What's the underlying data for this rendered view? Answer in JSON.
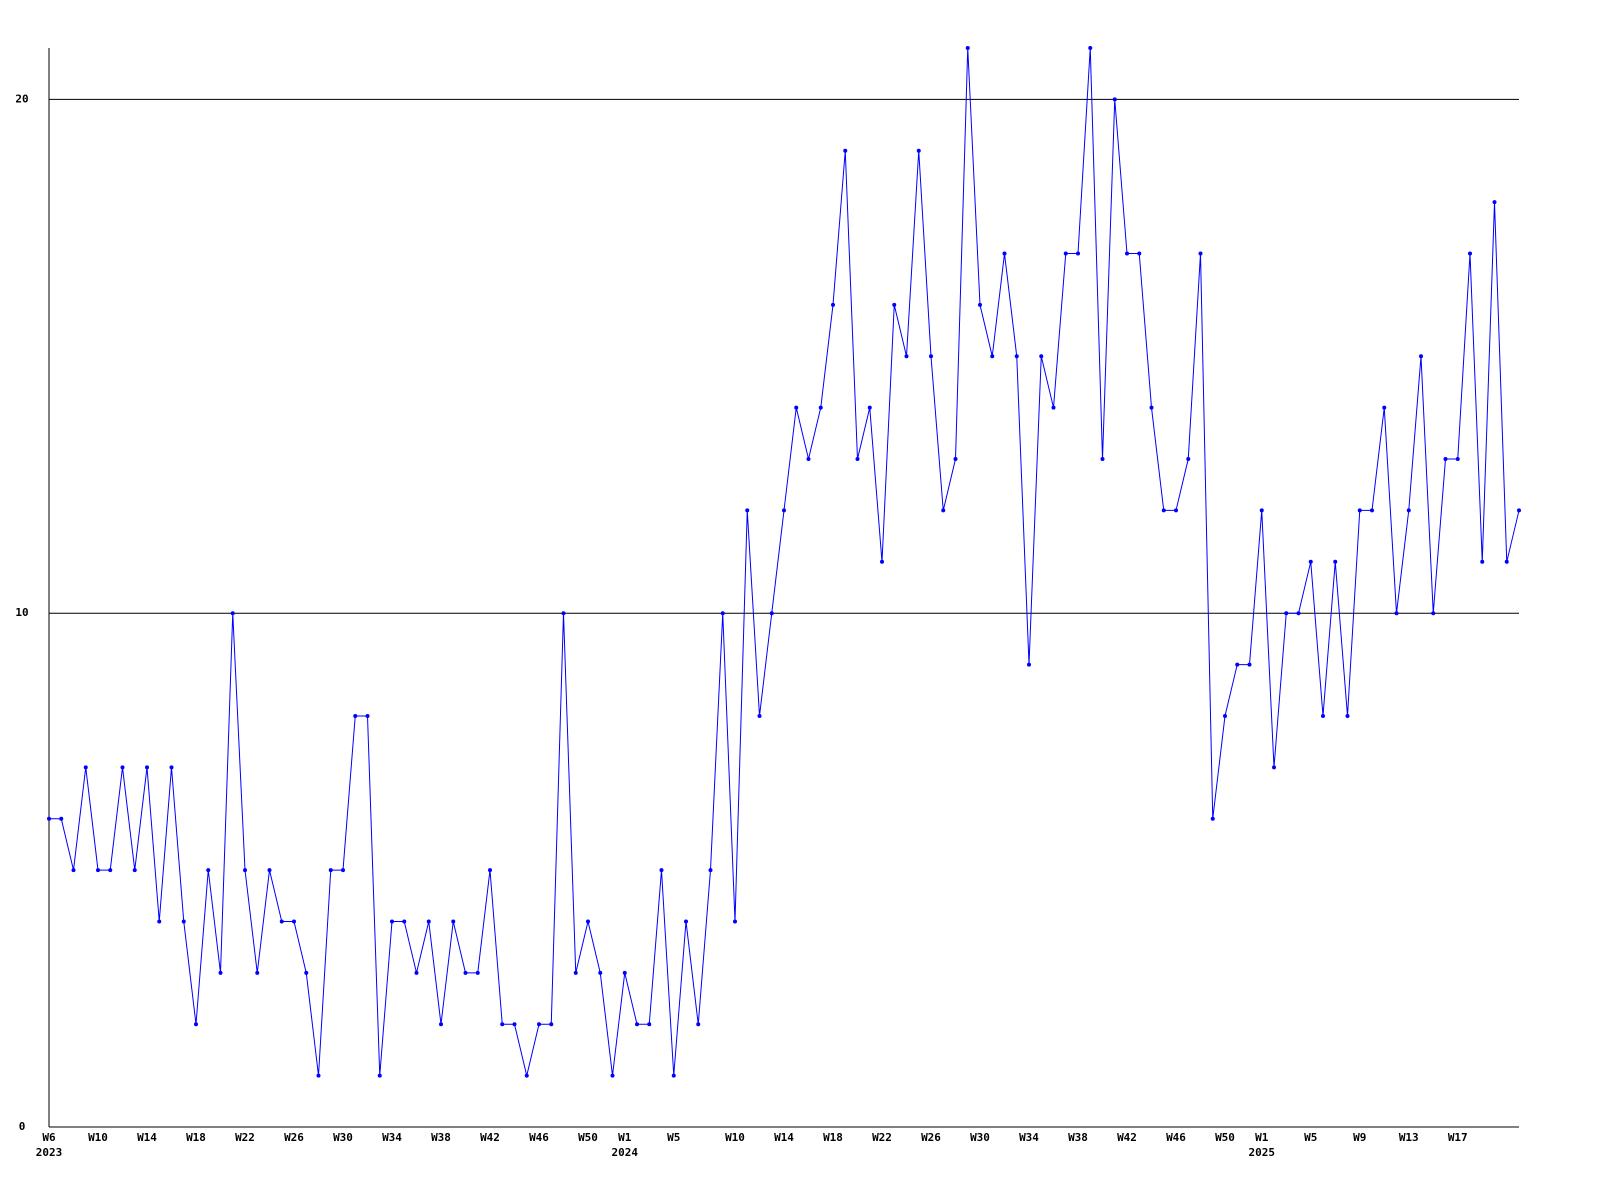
{
  "chart_data": {
    "type": "line",
    "categories": [
      "W6",
      null,
      null,
      null,
      "W10",
      null,
      null,
      null,
      "W14",
      null,
      null,
      null,
      "W18",
      null,
      null,
      null,
      "W22",
      null,
      null,
      null,
      "W26",
      null,
      null,
      null,
      "W30",
      null,
      null,
      null,
      "W34",
      null,
      null,
      null,
      "W38",
      null,
      null,
      null,
      "W42",
      null,
      null,
      null,
      "W46",
      null,
      null,
      null,
      "W50",
      null,
      null,
      "W1",
      null,
      null,
      null,
      "W5",
      null,
      null,
      null,
      null,
      "W10",
      null,
      null,
      null,
      "W14",
      null,
      null,
      null,
      "W18",
      null,
      null,
      null,
      "W22",
      null,
      null,
      null,
      "W26",
      null,
      null,
      null,
      "W30",
      null,
      null,
      null,
      "W34",
      null,
      null,
      null,
      "W38",
      null,
      null,
      null,
      "W42",
      null,
      null,
      null,
      "W46",
      null,
      null,
      null,
      "W50",
      null,
      null,
      "W1",
      null,
      null,
      null,
      "W5",
      null,
      null,
      null,
      "W9",
      null,
      null,
      null,
      "W13",
      null,
      null,
      null,
      "W17",
      null,
      null,
      null,
      null,
      null
    ],
    "category_years": [
      "2023",
      null,
      null,
      null,
      null,
      null,
      null,
      null,
      null,
      null,
      null,
      null,
      null,
      null,
      null,
      null,
      null,
      null,
      null,
      null,
      null,
      null,
      null,
      null,
      null,
      null,
      null,
      null,
      null,
      null,
      null,
      null,
      null,
      null,
      null,
      null,
      null,
      null,
      null,
      null,
      null,
      null,
      null,
      null,
      null,
      null,
      null,
      "2024",
      null,
      null,
      null,
      null,
      null,
      null,
      null,
      null,
      null,
      null,
      null,
      null,
      null,
      null,
      null,
      null,
      null,
      null,
      null,
      null,
      null,
      null,
      null,
      null,
      null,
      null,
      null,
      null,
      null,
      null,
      null,
      null,
      null,
      null,
      null,
      null,
      null,
      null,
      null,
      null,
      null,
      null,
      null,
      null,
      null,
      null,
      null,
      null,
      null,
      null,
      null,
      "2025",
      null,
      null,
      null,
      null,
      null,
      null,
      null,
      null,
      null,
      null,
      null,
      null,
      null,
      null,
      null,
      null,
      null,
      null,
      null,
      null,
      null
    ],
    "values": [
      6,
      6,
      5,
      7,
      5,
      5,
      7,
      5,
      7,
      4,
      7,
      4,
      2,
      5,
      3,
      10,
      5,
      3,
      5,
      4,
      4,
      3,
      1,
      5,
      5,
      8,
      8,
      1,
      4,
      4,
      3,
      4,
      2,
      4,
      3,
      3,
      5,
      2,
      2,
      1,
      2,
      2,
      10,
      3,
      4,
      3,
      1,
      3,
      2,
      2,
      5,
      1,
      4,
      2,
      5,
      10,
      4,
      12,
      8,
      10,
      12,
      14,
      13,
      14,
      16,
      19,
      13,
      14,
      11,
      16,
      15,
      19,
      15,
      12,
      13,
      21,
      16,
      15,
      17,
      15,
      9,
      15,
      14,
      17,
      17,
      21,
      13,
      20,
      17,
      17,
      14,
      12,
      12,
      13,
      17,
      6,
      8,
      9,
      9,
      12,
      7,
      10,
      10,
      11,
      8,
      11,
      8,
      12,
      12,
      14,
      10,
      12,
      15,
      10,
      13,
      13,
      17,
      11,
      18,
      11,
      12
    ],
    "color": "#0000ff",
    "ylim": [
      0,
      21
    ],
    "yticks": [
      0,
      10,
      20
    ],
    "grid": true
  }
}
